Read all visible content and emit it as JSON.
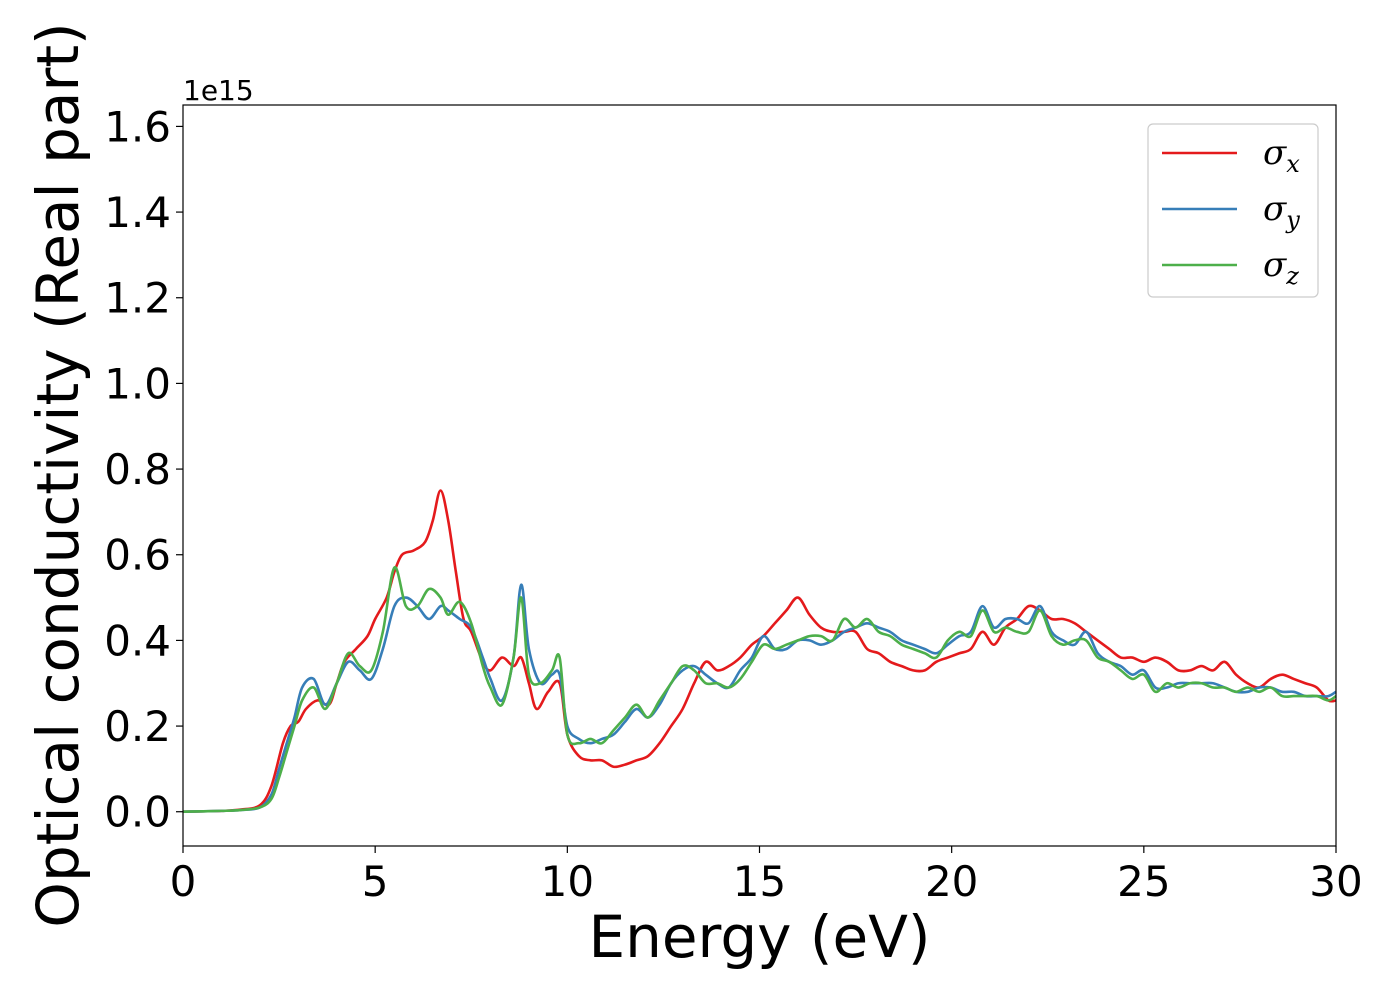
{
  "chart_data": {
    "type": "line",
    "xlabel": "Energy (eV)",
    "ylabel": "Optical conductivity (Real part)",
    "y_offset_label": "1e15",
    "xlim": [
      0,
      30
    ],
    "ylim": [
      -0.08,
      1.65
    ],
    "xticks": [
      0,
      5,
      10,
      15,
      20,
      25,
      30
    ],
    "xtick_labels": [
      "0",
      "5",
      "10",
      "15",
      "20",
      "25",
      "30"
    ],
    "yticks": [
      0.0,
      0.2,
      0.4,
      0.6,
      0.8,
      1.0,
      1.2,
      1.4,
      1.6
    ],
    "ytick_labels": [
      "0.0",
      "0.2",
      "0.4",
      "0.6",
      "0.8",
      "1.0",
      "1.2",
      "1.4",
      "1.6"
    ],
    "grid": false,
    "legend_position": "top-right",
    "series": [
      {
        "name": "σx",
        "symbol": "σ",
        "subscript": "x",
        "color": "#e41a1c",
        "x": [
          0,
          1,
          1.5,
          2,
          2.3,
          2.6,
          2.8,
          3,
          3.2,
          3.5,
          3.8,
          4,
          4.2,
          4.5,
          4.8,
          5,
          5.3,
          5.5,
          5.7,
          6,
          6.3,
          6.5,
          6.7,
          6.9,
          7.1,
          7.3,
          7.5,
          7.8,
          8,
          8.3,
          8.6,
          8.8,
          9,
          9.2,
          9.5,
          9.8,
          10,
          10.3,
          10.6,
          10.9,
          11.2,
          11.5,
          11.8,
          12.1,
          12.4,
          12.7,
          13,
          13.3,
          13.6,
          13.9,
          14.2,
          14.5,
          14.8,
          15.1,
          15.4,
          15.7,
          16,
          16.3,
          16.6,
          16.9,
          17.2,
          17.5,
          17.8,
          18.1,
          18.4,
          18.7,
          19,
          19.3,
          19.6,
          19.9,
          20.2,
          20.5,
          20.8,
          21.1,
          21.4,
          21.7,
          22,
          22.3,
          22.6,
          22.9,
          23.2,
          23.5,
          23.8,
          24.1,
          24.4,
          24.7,
          25,
          25.3,
          25.6,
          25.9,
          26.2,
          26.5,
          26.8,
          27.1,
          27.4,
          27.7,
          28,
          28.3,
          28.6,
          28.9,
          29.2,
          29.5,
          29.8,
          30
        ],
        "y": [
          0,
          0.002,
          0.005,
          0.015,
          0.06,
          0.16,
          0.2,
          0.21,
          0.24,
          0.26,
          0.25,
          0.3,
          0.35,
          0.38,
          0.41,
          0.45,
          0.5,
          0.56,
          0.6,
          0.61,
          0.63,
          0.68,
          0.75,
          0.68,
          0.56,
          0.45,
          0.42,
          0.35,
          0.33,
          0.36,
          0.34,
          0.36,
          0.3,
          0.24,
          0.28,
          0.3,
          0.18,
          0.13,
          0.12,
          0.12,
          0.105,
          0.11,
          0.12,
          0.13,
          0.16,
          0.2,
          0.24,
          0.3,
          0.35,
          0.33,
          0.34,
          0.36,
          0.39,
          0.41,
          0.44,
          0.47,
          0.5,
          0.46,
          0.43,
          0.42,
          0.42,
          0.42,
          0.38,
          0.37,
          0.35,
          0.34,
          0.33,
          0.33,
          0.35,
          0.36,
          0.37,
          0.38,
          0.42,
          0.39,
          0.43,
          0.45,
          0.48,
          0.47,
          0.45,
          0.45,
          0.44,
          0.42,
          0.4,
          0.38,
          0.36,
          0.36,
          0.35,
          0.36,
          0.35,
          0.33,
          0.33,
          0.34,
          0.33,
          0.35,
          0.32,
          0.3,
          0.29,
          0.31,
          0.32,
          0.31,
          0.3,
          0.29,
          0.26,
          0.26
        ]
      },
      {
        "name": "σy",
        "symbol": "σ",
        "subscript": "y",
        "color": "#377eb8",
        "x": [
          0,
          1,
          1.5,
          2,
          2.3,
          2.5,
          2.7,
          2.9,
          3.1,
          3.4,
          3.7,
          4,
          4.3,
          4.6,
          4.9,
          5.2,
          5.5,
          5.8,
          6.1,
          6.4,
          6.7,
          6.9,
          7.2,
          7.5,
          7.8,
          8,
          8.3,
          8.6,
          8.8,
          9,
          9.3,
          9.6,
          9.8,
          10,
          10.3,
          10.6,
          10.9,
          11.2,
          11.5,
          11.8,
          12.1,
          12.4,
          12.7,
          13,
          13.3,
          13.6,
          13.9,
          14.2,
          14.5,
          14.8,
          15.1,
          15.4,
          15.7,
          16,
          16.3,
          16.6,
          16.9,
          17.2,
          17.5,
          17.8,
          18.1,
          18.4,
          18.7,
          19,
          19.3,
          19.6,
          19.9,
          20.2,
          20.5,
          20.8,
          21.1,
          21.4,
          21.7,
          22,
          22.3,
          22.6,
          22.9,
          23.2,
          23.5,
          23.8,
          24.1,
          24.4,
          24.7,
          25,
          25.3,
          25.6,
          25.9,
          26.2,
          26.5,
          26.8,
          27.1,
          27.4,
          27.7,
          28,
          28.3,
          28.6,
          28.9,
          29.2,
          29.5,
          29.8,
          30
        ],
        "y": [
          0,
          0.002,
          0.004,
          0.01,
          0.04,
          0.1,
          0.16,
          0.22,
          0.29,
          0.31,
          0.25,
          0.3,
          0.35,
          0.33,
          0.31,
          0.38,
          0.48,
          0.5,
          0.48,
          0.45,
          0.48,
          0.47,
          0.45,
          0.43,
          0.36,
          0.31,
          0.26,
          0.36,
          0.53,
          0.38,
          0.3,
          0.32,
          0.32,
          0.2,
          0.17,
          0.16,
          0.17,
          0.18,
          0.21,
          0.24,
          0.22,
          0.25,
          0.3,
          0.33,
          0.34,
          0.32,
          0.3,
          0.29,
          0.33,
          0.36,
          0.41,
          0.38,
          0.38,
          0.4,
          0.4,
          0.39,
          0.4,
          0.42,
          0.43,
          0.44,
          0.43,
          0.42,
          0.4,
          0.39,
          0.38,
          0.37,
          0.39,
          0.41,
          0.42,
          0.48,
          0.43,
          0.45,
          0.45,
          0.44,
          0.48,
          0.42,
          0.4,
          0.39,
          0.42,
          0.37,
          0.35,
          0.34,
          0.32,
          0.33,
          0.29,
          0.29,
          0.3,
          0.3,
          0.3,
          0.3,
          0.29,
          0.28,
          0.28,
          0.29,
          0.29,
          0.28,
          0.28,
          0.27,
          0.27,
          0.27,
          0.28
        ]
      },
      {
        "name": "σz",
        "symbol": "σ",
        "subscript": "z",
        "color": "#4daf4a",
        "x": [
          0,
          1,
          1.5,
          2,
          2.3,
          2.5,
          2.7,
          2.9,
          3.1,
          3.4,
          3.7,
          4,
          4.3,
          4.6,
          4.9,
          5.2,
          5.5,
          5.8,
          6.1,
          6.4,
          6.7,
          6.9,
          7.2,
          7.5,
          7.8,
          8,
          8.3,
          8.6,
          8.8,
          9,
          9.3,
          9.6,
          9.8,
          10,
          10.3,
          10.6,
          10.9,
          11.2,
          11.5,
          11.8,
          12.1,
          12.4,
          12.7,
          13,
          13.3,
          13.6,
          13.9,
          14.2,
          14.5,
          14.8,
          15.1,
          15.4,
          15.7,
          16,
          16.3,
          16.6,
          16.9,
          17.2,
          17.5,
          17.8,
          18.1,
          18.4,
          18.7,
          19,
          19.3,
          19.6,
          19.9,
          20.2,
          20.5,
          20.8,
          21.1,
          21.4,
          21.7,
          22,
          22.3,
          22.6,
          22.9,
          23.2,
          23.5,
          23.8,
          24.1,
          24.4,
          24.7,
          25,
          25.3,
          25.6,
          25.9,
          26.2,
          26.5,
          26.8,
          27.1,
          27.4,
          27.7,
          28,
          28.3,
          28.6,
          28.9,
          29.2,
          29.5,
          29.8,
          30
        ],
        "y": [
          0,
          0.002,
          0.004,
          0.01,
          0.03,
          0.08,
          0.14,
          0.2,
          0.26,
          0.29,
          0.24,
          0.3,
          0.37,
          0.34,
          0.33,
          0.42,
          0.57,
          0.48,
          0.48,
          0.52,
          0.5,
          0.46,
          0.49,
          0.44,
          0.34,
          0.29,
          0.25,
          0.36,
          0.5,
          0.32,
          0.3,
          0.33,
          0.36,
          0.18,
          0.16,
          0.17,
          0.16,
          0.19,
          0.22,
          0.25,
          0.22,
          0.26,
          0.3,
          0.34,
          0.33,
          0.3,
          0.3,
          0.29,
          0.31,
          0.35,
          0.39,
          0.38,
          0.39,
          0.4,
          0.41,
          0.41,
          0.4,
          0.45,
          0.43,
          0.45,
          0.42,
          0.41,
          0.39,
          0.38,
          0.37,
          0.36,
          0.4,
          0.42,
          0.41,
          0.47,
          0.42,
          0.43,
          0.42,
          0.42,
          0.47,
          0.41,
          0.39,
          0.4,
          0.4,
          0.36,
          0.35,
          0.33,
          0.31,
          0.32,
          0.28,
          0.3,
          0.29,
          0.3,
          0.3,
          0.29,
          0.29,
          0.28,
          0.29,
          0.28,
          0.29,
          0.27,
          0.27,
          0.27,
          0.27,
          0.26,
          0.27
        ]
      }
    ]
  }
}
